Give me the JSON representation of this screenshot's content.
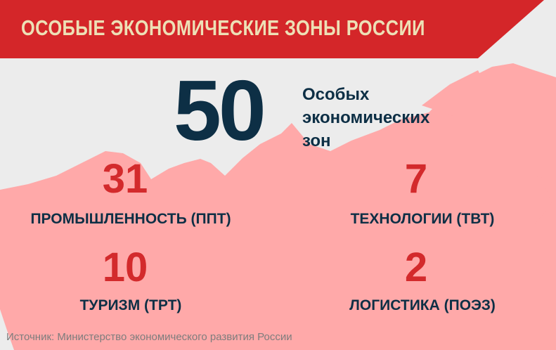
{
  "title": "ОСОБЫЕ ЭКОНОМИЧЕСКИЕ ЗОНЫ РОССИИ",
  "colors": {
    "banner": "#d42629",
    "title": "#ede0b6",
    "map": "#ffa9a9",
    "background": "#ececec",
    "dark": "#0d2f45",
    "accent": "#d32a2c"
  },
  "total": {
    "value": "50",
    "lines": [
      "Особых",
      "экономических",
      "зон"
    ]
  },
  "zones": [
    {
      "value": "31",
      "label": "ПРОМЫШЛЕННОСТЬ (ППТ)"
    },
    {
      "value": "7",
      "label": "ТЕХНОЛОГИИ (ТВТ)"
    },
    {
      "value": "10",
      "label": "ТУРИЗМ (ТРТ)"
    },
    {
      "value": "2",
      "label": "ЛОГИСТИКА (ПОЭЗ)"
    }
  ],
  "source": "Источник: Министерство экономического развития России"
}
